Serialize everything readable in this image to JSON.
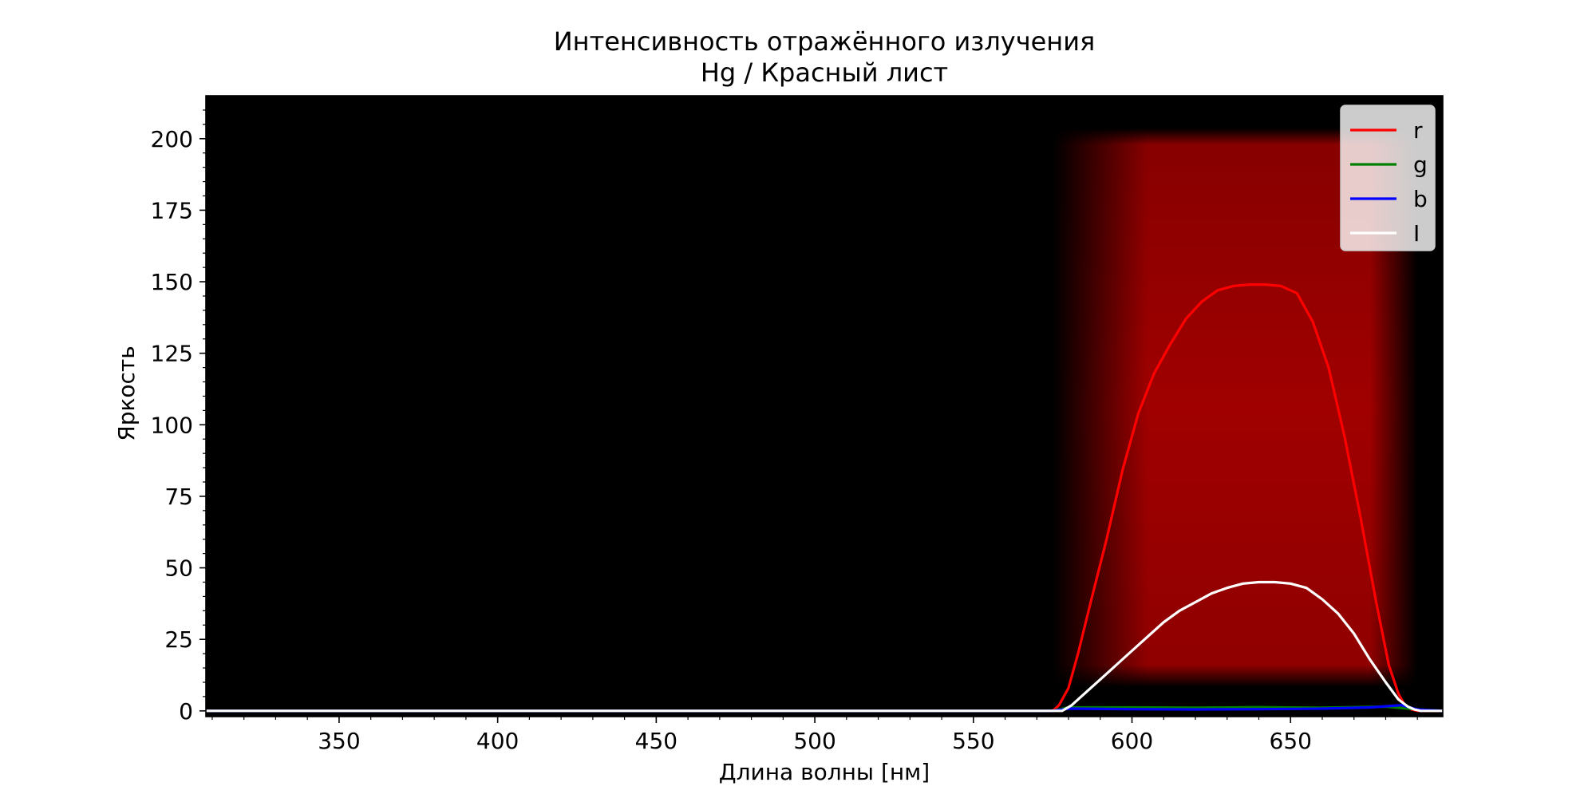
{
  "chart_data": {
    "type": "line",
    "title": "Интенсивность отражённого излучения",
    "subtitle": "Hg / Красный лист",
    "xlabel": "Длина волны [нм]",
    "ylabel": "Яркость",
    "xlim": [
      308,
      698
    ],
    "ylim": [
      -2,
      215
    ],
    "xticks": [
      350,
      400,
      450,
      500,
      550,
      600,
      650
    ],
    "yticks": [
      0,
      25,
      50,
      75,
      100,
      125,
      150,
      175,
      200
    ],
    "legend_position": "top-right",
    "background": "#000000",
    "glow": {
      "x_start": 575,
      "x_full": 605,
      "x_full_end": 675,
      "x_end": 690,
      "y_low": 10,
      "y_high": 202,
      "color": "#a00000"
    },
    "series": [
      {
        "name": "r",
        "color": "#ff0000",
        "x": [
          308,
          575,
          577,
          580,
          583,
          587,
          592,
          597,
          602,
          607,
          612,
          617,
          622,
          627,
          632,
          637,
          642,
          647,
          652,
          657,
          662,
          667,
          672,
          677,
          681,
          684,
          686,
          688,
          690,
          698
        ],
        "y": [
          0,
          0,
          2,
          8,
          20,
          38,
          60,
          84,
          104,
          118,
          128,
          137,
          143,
          147,
          148.5,
          149,
          149,
          148.5,
          146,
          136,
          120,
          96,
          68,
          38,
          16,
          6,
          2,
          0.5,
          0,
          0
        ]
      },
      {
        "name": "g",
        "color": "#008000",
        "x": [
          308,
          575,
          580,
          600,
          620,
          640,
          660,
          680,
          690,
          698
        ],
        "y": [
          0,
          0,
          1.2,
          1.2,
          1.1,
          1.3,
          1.1,
          1.5,
          0.5,
          0
        ]
      },
      {
        "name": "b",
        "color": "#0000ff",
        "x": [
          308,
          575,
          580,
          600,
          620,
          640,
          660,
          675,
          685,
          690,
          698
        ],
        "y": [
          0,
          0,
          0.8,
          0.6,
          0.5,
          0.6,
          0.8,
          1.2,
          2.0,
          0.5,
          0
        ]
      },
      {
        "name": "I",
        "color": "#ffffff",
        "x": [
          308,
          578,
          581,
          585,
          590,
          595,
          600,
          605,
          610,
          615,
          620,
          625,
          630,
          635,
          640,
          645,
          650,
          655,
          660,
          665,
          670,
          675,
          680,
          684,
          687,
          689,
          691,
          698
        ],
        "y": [
          0,
          0,
          2,
          6,
          11,
          16,
          21,
          26,
          31,
          35,
          38,
          41,
          43,
          44.5,
          45,
          45,
          44.5,
          43,
          39,
          34,
          27,
          18,
          10,
          4,
          1.5,
          0.5,
          0,
          0
        ]
      }
    ]
  }
}
